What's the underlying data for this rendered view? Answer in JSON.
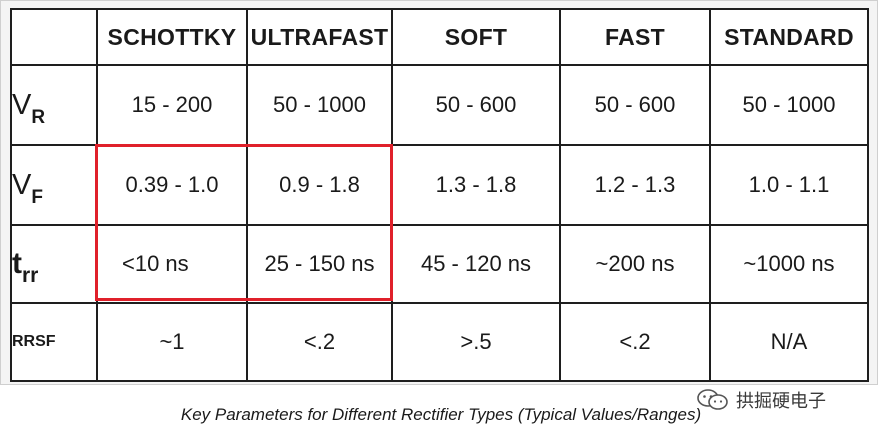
{
  "table": {
    "headers": [
      "",
      "SCHOTTKY",
      "ULTRAFAST",
      "SOFT",
      "FAST",
      "STANDARD"
    ],
    "rows": [
      {
        "symbol": "V",
        "subscript": "R",
        "values": [
          "15 - 200",
          "50 - 1000",
          "50 - 600",
          "50 - 600",
          "50 - 1000"
        ]
      },
      {
        "symbol": "V",
        "subscript": "F",
        "values": [
          "0.39 - 1.0",
          "0.9 - 1.8",
          "1.3 - 1.8",
          "1.2 - 1.3",
          "1.0 - 1.1"
        ]
      },
      {
        "symbol": "t",
        "subscript": "rr",
        "values": [
          "<10 ns",
          "25 - 150 ns",
          "45 - 120 ns",
          "~200 ns",
          "~1000 ns"
        ]
      },
      {
        "symbol": "RRSF",
        "subscript": "",
        "values": [
          "~1",
          "<.2",
          ">.5",
          "<.2",
          "N/A"
        ]
      }
    ]
  },
  "highlight": {
    "color": "#e0202a",
    "columns": [
      "SCHOTTKY",
      "ULTRAFAST"
    ],
    "rows": [
      "VF",
      "trr"
    ]
  },
  "caption": "Key Parameters for Different Rectifier Types (Typical Values/Ranges)",
  "watermark": {
    "icon": "wechat-icon",
    "text": "拱掘硬电子"
  }
}
